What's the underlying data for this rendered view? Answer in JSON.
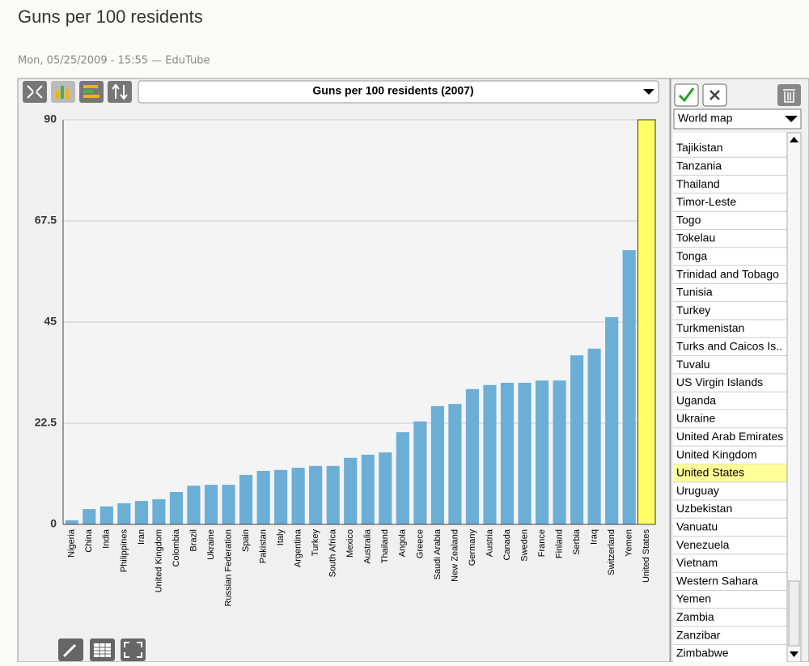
{
  "header": {
    "title": "Guns per 100 residents",
    "meta": "Mon, 05/25/2009 - 15:55 — EduTube"
  },
  "toolbar": {
    "indicator": "Guns per 100 residents (2007)"
  },
  "sidebar": {
    "map_select": "World map",
    "countries": [
      "Tajikistan",
      "Tanzania",
      "Thailand",
      "Timor-Leste",
      "Togo",
      "Tokelau",
      "Tonga",
      "Trinidad and Tobago",
      "Tunisia",
      "Turkey",
      "Turkmenistan",
      "Turks and Caicos Is..",
      "Tuvalu",
      "US Virgin Islands",
      "Uganda",
      "Ukraine",
      "United Arab Emirates",
      "United Kingdom",
      "United States",
      "Uruguay",
      "Uzbekistan",
      "Vanuatu",
      "Venezuela",
      "Vietnam",
      "Western Sahara",
      "Yemen",
      "Zambia",
      "Zanzibar",
      "Zimbabwe"
    ],
    "selected": 18,
    "highlight_color": "#ffff99"
  },
  "chart_data": {
    "type": "bar",
    "categories": [
      "Nigeria",
      "China",
      "India",
      "Philippines",
      "Iran",
      "United Kingdom",
      "Colombia",
      "Brazil",
      "Ukraine",
      "Russian Federation",
      "Spain",
      "Pakistan",
      "Italy",
      "Argentina",
      "Turkey",
      "South Africa",
      "Mexico",
      "Australia",
      "Thailand",
      "Angola",
      "Greece",
      "Saudi Arabia",
      "New Zealand",
      "Germany",
      "Austria",
      "Canada",
      "Sweden",
      "France",
      "Finland",
      "Serbia",
      "Iraq",
      "Switzerland",
      "Yemen",
      "United States"
    ],
    "values": [
      0.9,
      3.4,
      4.0,
      4.7,
      5.2,
      5.6,
      7.2,
      8.6,
      8.8,
      8.8,
      11.0,
      11.9,
      12.1,
      12.6,
      13.0,
      13.0,
      14.8,
      15.5,
      16.0,
      20.5,
      22.9,
      26.3,
      26.8,
      30.1,
      31.0,
      31.5,
      31.5,
      32.0,
      32.0,
      37.6,
      39.1,
      46.1,
      61.0,
      90
    ],
    "color": "#6baed6",
    "highlight_color": "#ffff66",
    "ylim": [
      0,
      90
    ],
    "yticks": [
      0,
      22.5,
      45,
      67.5,
      90
    ],
    "grid": true
  }
}
